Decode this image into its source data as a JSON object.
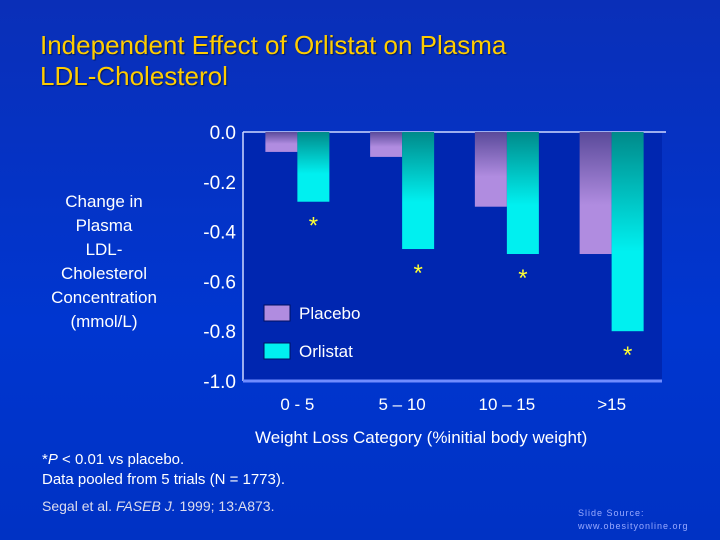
{
  "title_lines": [
    "Independent Effect of Orlistat on Plasma",
    "LDL-Cholesterol"
  ],
  "chart_data": {
    "type": "bar",
    "title": "Independent Effect of Orlistat on Plasma LDL-Cholesterol",
    "ylabel": "Change in Plasma LDL-Cholesterol Concentration (mmol/L)",
    "ylabel_lines": [
      "Change in",
      "Plasma",
      "LDL-",
      "Cholesterol",
      "Concentration",
      "(mmol/L)"
    ],
    "xlabel": "Weight Loss Category (%initial body weight)",
    "categories": [
      "0 - 5",
      "5 – 10",
      "10 – 15",
      ">15"
    ],
    "ylim": [
      -1.0,
      0.0
    ],
    "yticks": [
      "0.0",
      "-0.2",
      "-0.4",
      "-0.6",
      "-0.8",
      "-1.0"
    ],
    "series": [
      {
        "name": "Placebo",
        "values": [
          -0.08,
          -0.1,
          -0.3,
          -0.49
        ],
        "color": "#b08ce0"
      },
      {
        "name": "Orlistat",
        "values": [
          -0.28,
          -0.47,
          -0.49,
          -0.8
        ],
        "color": "#00f0f0"
      }
    ],
    "significance_marker": "*",
    "significant": [
      true,
      true,
      true,
      true
    ],
    "legend": "inside-bottom-left",
    "grid": false
  },
  "footnote": {
    "prefix": "*",
    "p": "P",
    "rest": " < 0.01 vs placebo.",
    "line2": " Data pooled from 5 trials (N = 1773)."
  },
  "citation": {
    "authors": "Segal et al. ",
    "journal": "FASEB J.",
    "rest": " 1999; 13:A873."
  },
  "source": {
    "line1": "Slide Source:",
    "line2": "www.obesityonline.org"
  }
}
